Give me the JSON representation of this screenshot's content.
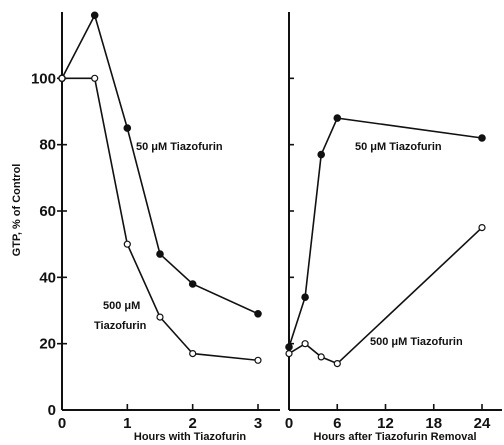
{
  "chart_data": [
    {
      "type": "line",
      "title": "",
      "xlabel": "Hours with Tiazofurin",
      "ylabel": "GTP, % of Control",
      "xlim": [
        0,
        3.3
      ],
      "ylim": [
        0,
        120
      ],
      "xticks": [
        0,
        1,
        2,
        3
      ],
      "xtick_labels": [
        "0",
        "1",
        "2",
        "3"
      ],
      "yticks": [
        0,
        20,
        40,
        60,
        80,
        100
      ],
      "ytick_labels": [
        "0",
        "20",
        "40",
        "60",
        "80",
        "100"
      ],
      "series": [
        {
          "name": "50 µM Tiazofurin",
          "marker": "filled",
          "x": [
            0,
            0.5,
            1,
            1.5,
            2,
            3
          ],
          "y": [
            100,
            119,
            85,
            47,
            38,
            29
          ]
        },
        {
          "name": "500 µM Tiazofurin",
          "marker": "open",
          "x": [
            0,
            0.5,
            1,
            1.5,
            2,
            3
          ],
          "y": [
            100,
            100,
            50,
            28,
            17,
            15
          ]
        }
      ]
    },
    {
      "type": "line",
      "title": "",
      "xlabel": "Hours after Tiazofurin Removal",
      "ylabel": "",
      "xlim": [
        0,
        25
      ],
      "ylim": [
        0,
        120
      ],
      "xticks": [
        0,
        6,
        12,
        18,
        24
      ],
      "xtick_labels": [
        "0",
        "6",
        "12",
        "18",
        "24"
      ],
      "yticks": [
        0,
        20,
        40,
        60,
        80,
        100
      ],
      "ytick_labels": [],
      "series": [
        {
          "name": "50 µM Tiazofurin",
          "marker": "filled",
          "x": [
            0,
            2,
            4,
            6,
            24
          ],
          "y": [
            19,
            34,
            77,
            88,
            82
          ]
        },
        {
          "name": "500 µM Tiazofurin",
          "marker": "open",
          "x": [
            0,
            2,
            4,
            6,
            24
          ],
          "y": [
            17,
            20,
            16,
            14,
            55
          ]
        }
      ]
    }
  ],
  "annotations": {
    "left_50": "50 μM Tiazofurin",
    "left_500_line1": "500 μM",
    "left_500_line2": "Tiazofurin",
    "right_50": "50 μM Tiazofurin",
    "right_500": "500 μM Tiazofurin"
  }
}
